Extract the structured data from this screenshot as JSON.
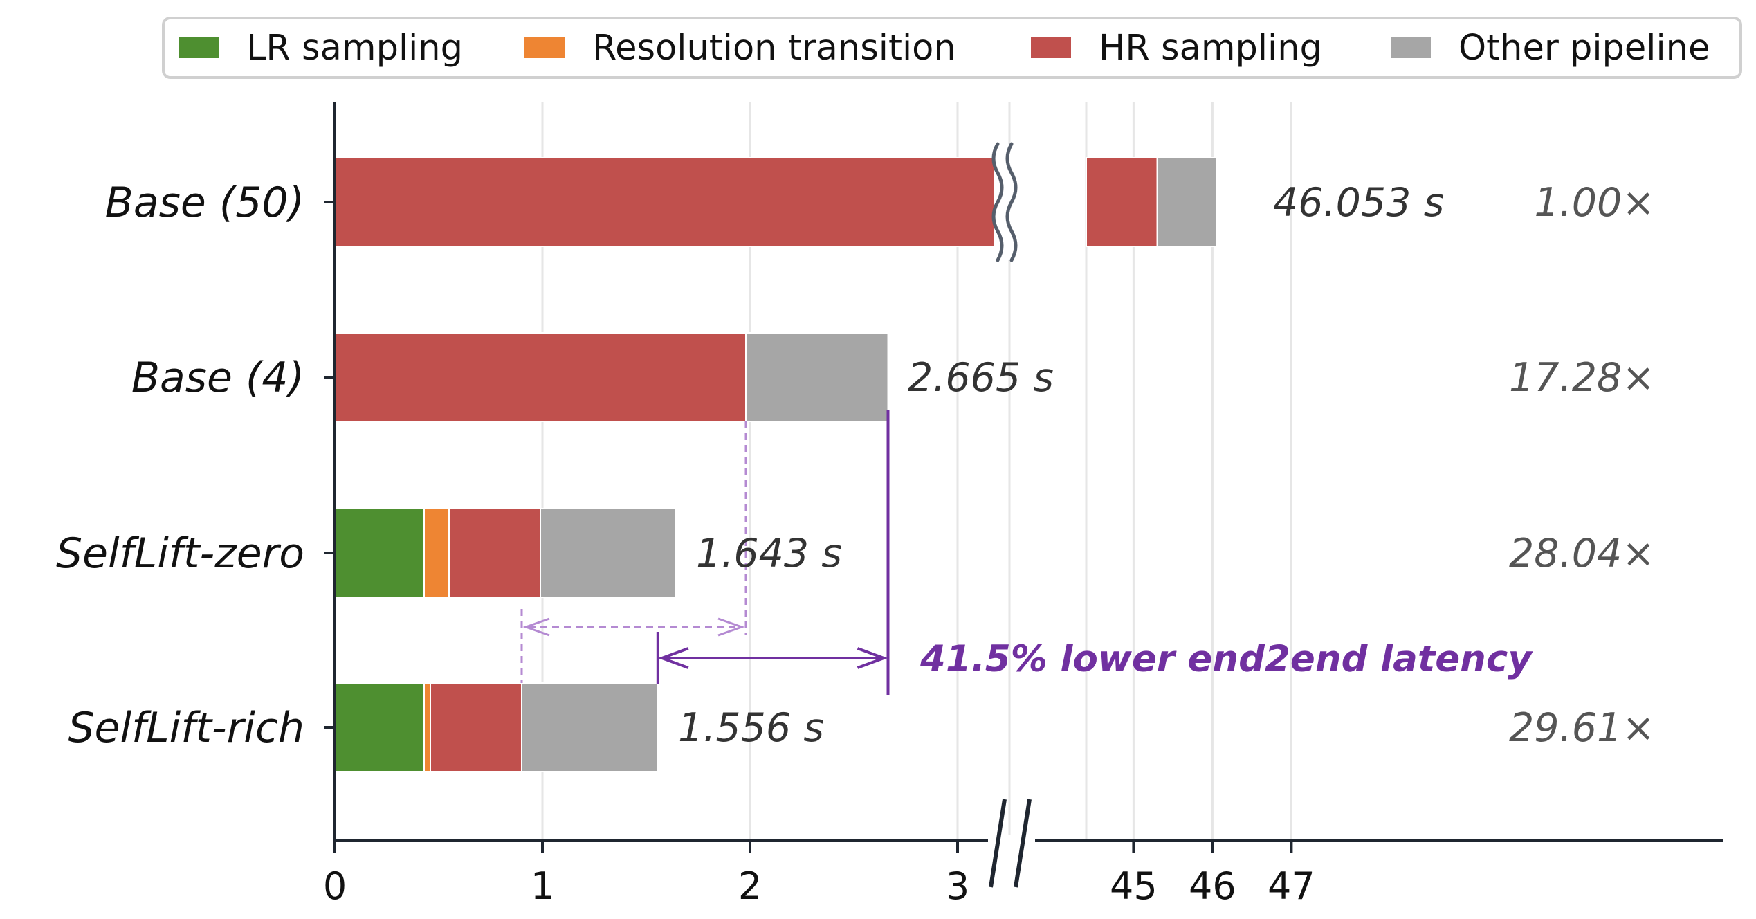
{
  "chart_data": {
    "type": "bar",
    "orientation": "horizontal",
    "stacked": true,
    "categories": [
      "Base (50)",
      "Base (4)",
      "SelfLift-zero",
      "SelfLift-rich"
    ],
    "series": [
      {
        "name": "LR sampling",
        "color": "#4e8f30",
        "values": [
          0,
          0,
          0.43,
          0.43
        ]
      },
      {
        "name": "Resolution transition",
        "color": "#ee8533",
        "values": [
          0,
          0,
          0.12,
          0.03
        ]
      },
      {
        "name": "HR sampling",
        "color": "#c0504d",
        "values": [
          45.3,
          1.98,
          0.44,
          0.44
        ]
      },
      {
        "name": "Other pipeline",
        "color": "#a6a6a6",
        "values": [
          0.753,
          0.685,
          0.653,
          0.656
        ]
      }
    ],
    "totals": [
      "46.053 s",
      "2.665 s",
      "1.643 s",
      "1.556 s"
    ],
    "speedups": [
      "1.00×",
      "17.28×",
      "28.04×",
      "29.61×"
    ],
    "x_ticks": [
      "0",
      "1",
      "2",
      "3",
      "45",
      "46",
      "47"
    ],
    "x_axis_break": {
      "lower_segment": [
        0,
        3.25
      ],
      "upper_segment": [
        44.4,
        48
      ]
    },
    "annotation": "41.5% lower end2end latency",
    "grid": "vertical",
    "legend": "top"
  }
}
